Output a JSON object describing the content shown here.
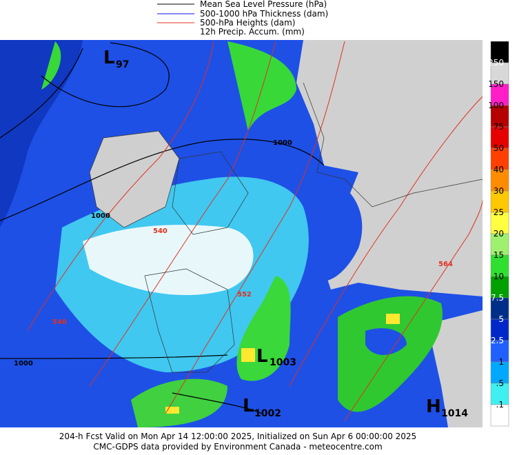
{
  "legend": [
    {
      "label": "Mean Sea Level Pressure (hPa)"
    },
    {
      "label": "500-1000 hPa Thickness (dam)"
    },
    {
      "label": "500-hPa Heights (dam)"
    },
    {
      "label": "12h Precip. Accum. (mm)"
    }
  ],
  "colorbar": {
    "labels": [
      "250",
      "150",
      "100",
      "75",
      "50",
      "40",
      "30",
      "25",
      "20",
      "15",
      "10",
      "7.5",
      "5",
      "2.5",
      "1",
      ".5",
      ".1"
    ]
  },
  "map": {
    "centers": [
      {
        "letter": "L",
        "value": "97"
      },
      {
        "letter": "L",
        "value": "1003"
      },
      {
        "letter": "L",
        "value": "1002"
      },
      {
        "letter": "H",
        "value": "1014"
      }
    ],
    "contour_labels": [
      "1000",
      "1000",
      "1000",
      "540",
      "540",
      "552",
      "564"
    ]
  },
  "footer": {
    "line1": "204-h Fcst Valid on Mon Apr 14 12:00:00 2025, Initialized on Sun Apr  6 00:00:00 2025",
    "line2": "CMC-GDPS data provided by Environment Canada - meteocentre.com"
  }
}
